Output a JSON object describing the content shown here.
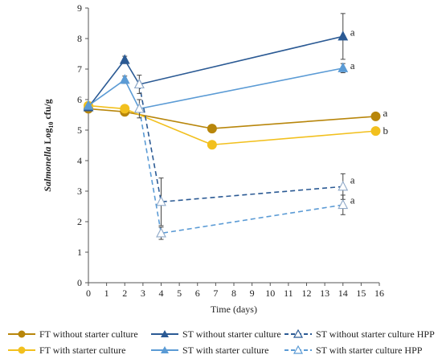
{
  "chart_data": {
    "type": "line",
    "xlabel": "Time (days)",
    "ylabel_italic": "Salmonella",
    "ylabel_rest": " Log",
    "ylabel_sub": "10",
    "ylabel_tail": " cfu/g",
    "xlim": [
      0,
      16
    ],
    "ylim": [
      0,
      9
    ],
    "xticks": [
      "0",
      "1",
      "2",
      "3",
      "4",
      "5",
      "6",
      "7",
      "8",
      "9",
      "10",
      "11",
      "12",
      "13",
      "14",
      "15",
      "16"
    ],
    "yticks": [
      "0",
      "1",
      "2",
      "3",
      "4",
      "5",
      "6",
      "7",
      "8",
      "9"
    ],
    "series": [
      {
        "name": "FT without starter culture",
        "color": "#b8860b",
        "marker": "circle",
        "filled": true,
        "dashed": false,
        "points": [
          {
            "x": 0,
            "y": 5.7
          },
          {
            "x": 2,
            "y": 5.6
          },
          {
            "x": 6.8,
            "y": 5.05
          },
          {
            "x": 15.8,
            "y": 5.45
          }
        ]
      },
      {
        "name": "FT with starter culture",
        "color": "#f2c01e",
        "marker": "circle",
        "filled": true,
        "dashed": false,
        "points": [
          {
            "x": 0,
            "y": 5.8
          },
          {
            "x": 2,
            "y": 5.7
          },
          {
            "x": 6.8,
            "y": 4.52
          },
          {
            "x": 15.8,
            "y": 4.97
          }
        ]
      },
      {
        "name": "ST without starter culture",
        "color": "#2b5a94",
        "marker": "triangle",
        "filled": true,
        "dashed": false,
        "points": [
          {
            "x": 0,
            "y": 5.75
          },
          {
            "x": 2,
            "y": 7.3,
            "err": 0.12
          },
          {
            "x": 2.8,
            "y": 6.5
          },
          {
            "x": 14,
            "y": 8.07,
            "err": 0.75
          }
        ]
      },
      {
        "name": "ST with starter culture",
        "color": "#5b9bd5",
        "marker": "triangle",
        "filled": true,
        "dashed": false,
        "points": [
          {
            "x": 0,
            "y": 5.8
          },
          {
            "x": 2,
            "y": 6.65,
            "err": 0.12
          },
          {
            "x": 2.8,
            "y": 5.7
          },
          {
            "x": 14,
            "y": 7.03,
            "err": 0.15
          }
        ]
      },
      {
        "name": "ST without starter culture HPP",
        "color": "#2b5a94",
        "marker": "triangle",
        "filled": false,
        "dashed": true,
        "points": [
          {
            "x": 2.8,
            "y": 6.5,
            "err": 0.3
          },
          {
            "x": 4,
            "y": 2.65,
            "err": 0.78
          },
          {
            "x": 14,
            "y": 3.15,
            "err": 0.42
          }
        ]
      },
      {
        "name": "ST with starter culture HPP",
        "color": "#5b9bd5",
        "marker": "triangle",
        "filled": false,
        "dashed": true,
        "points": [
          {
            "x": 2.8,
            "y": 5.7,
            "err": 0.3
          },
          {
            "x": 4,
            "y": 1.62,
            "err": 0.2
          },
          {
            "x": 14,
            "y": 2.55,
            "err": 0.32
          }
        ]
      }
    ],
    "annotations": [
      {
        "text": "a",
        "x": 14.4,
        "y": 8.2
      },
      {
        "text": "a",
        "x": 14.4,
        "y": 7.1
      },
      {
        "text": "a",
        "x": 16.2,
        "y": 5.55
      },
      {
        "text": "b",
        "x": 16.2,
        "y": 4.97
      },
      {
        "text": "a",
        "x": 14.4,
        "y": 3.35
      },
      {
        "text": "a",
        "x": 14.4,
        "y": 2.7
      }
    ]
  },
  "legend": [
    {
      "label": "FT without starter culture"
    },
    {
      "label": "ST without starter culture"
    },
    {
      "label": "ST without starter culture HPP"
    },
    {
      "label": "FT with starter culture"
    },
    {
      "label": "ST with starter culture"
    },
    {
      "label": "ST with starter culture HPP"
    }
  ]
}
